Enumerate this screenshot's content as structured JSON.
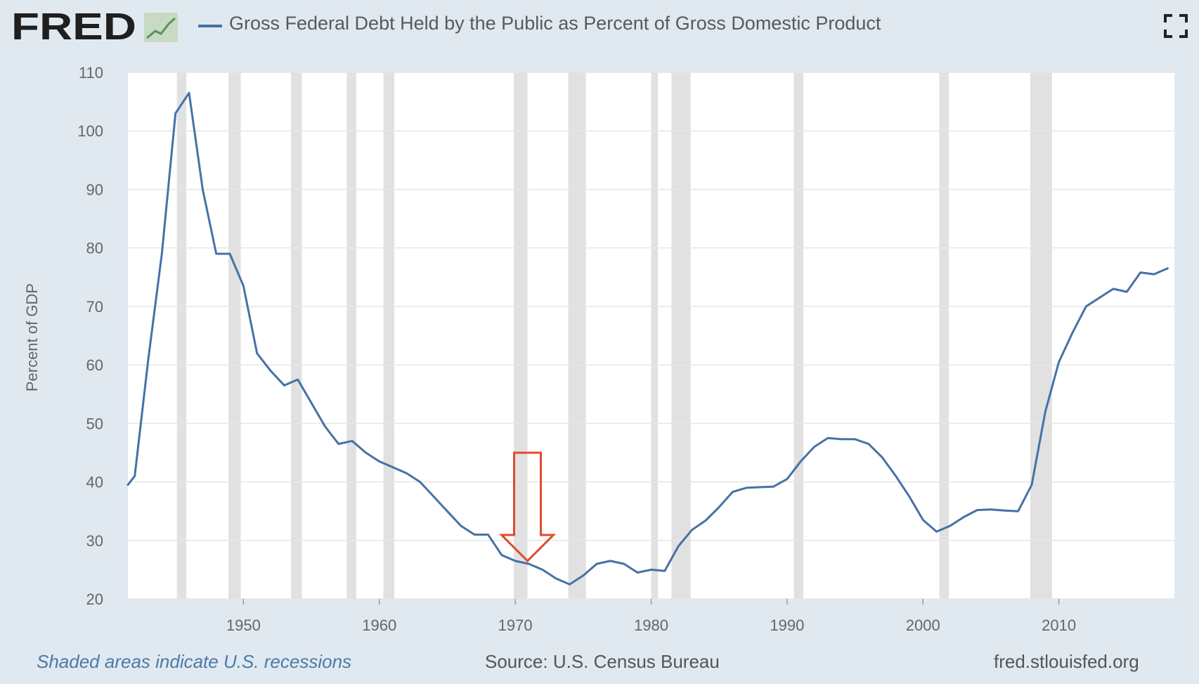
{
  "header": {
    "logo_text": "FRED",
    "title": "Gross Federal Debt Held by the Public as Percent of Gross Domestic Product",
    "fullscreen_icon": "fullscreen-expand-icon",
    "logo_icon": "line-chart-icon"
  },
  "footer": {
    "recession_note": "Shaded areas indicate U.S. recessions",
    "source": "Source: U.S. Census Bureau",
    "url": "fred.stlouisfed.org"
  },
  "colors": {
    "series": "#4572a7",
    "recession": "#e1e1e1",
    "background": "#e1e9f0",
    "plot": "#ffffff",
    "annotation_arrow": "#e04a2f",
    "note_text": "#4a7aa8"
  },
  "chart_data": {
    "type": "line",
    "title": "Gross Federal Debt Held by the Public as Percent of Gross Domestic Product",
    "xlabel": "",
    "ylabel": "Percent of GDP",
    "xlim": [
      1941.5,
      2018.5
    ],
    "ylim": [
      20,
      110
    ],
    "x_ticks": [
      1950,
      1960,
      1970,
      1980,
      1990,
      2000,
      2010
    ],
    "y_ticks": [
      20,
      30,
      40,
      50,
      60,
      70,
      80,
      90,
      100,
      110
    ],
    "grid": true,
    "legend_position": "top",
    "series": [
      {
        "name": "Gross Federal Debt Held by the Public as Percent of Gross Domestic Product",
        "x": [
          1941.5,
          1942,
          1943,
          1944,
          1945,
          1946,
          1947,
          1948,
          1949,
          1950,
          1951,
          1952,
          1953,
          1954,
          1955,
          1956,
          1957,
          1958,
          1959,
          1960,
          1961,
          1962,
          1963,
          1964,
          1965,
          1966,
          1967,
          1968,
          1969,
          1970,
          1971,
          1972,
          1973,
          1974,
          1975,
          1976,
          1977,
          1978,
          1979,
          1980,
          1981,
          1982,
          1983,
          1984,
          1985,
          1986,
          1987,
          1988,
          1989,
          1990,
          1991,
          1992,
          1993,
          1994,
          1995,
          1996,
          1997,
          1998,
          1999,
          2000,
          2001,
          2002,
          2003,
          2004,
          2005,
          2006,
          2007,
          2008,
          2009,
          2010,
          2011,
          2012,
          2013,
          2014,
          2015,
          2016,
          2017,
          2018
        ],
        "values": [
          39.5,
          41,
          61,
          79,
          103,
          106.5,
          90,
          79,
          79,
          73.5,
          62,
          59,
          56.5,
          57.5,
          53.5,
          49.5,
          46.5,
          47,
          45,
          43.5,
          42.5,
          41.5,
          40,
          37.5,
          35,
          32.5,
          31,
          31,
          27.5,
          26.5,
          26,
          25,
          23.5,
          22.5,
          24,
          26,
          26.5,
          26,
          24.5,
          25,
          24.8,
          29,
          31.8,
          33.4,
          35.7,
          38.3,
          39,
          39.1,
          39.2,
          40.5,
          43.5,
          46,
          47.5,
          47.3,
          47.3,
          46.5,
          44.2,
          41,
          37.5,
          33.5,
          31.5,
          32.5,
          34,
          35.2,
          35.3,
          35.1,
          35,
          39.5,
          52,
          60.5,
          65.5,
          70,
          71.5,
          73,
          72.5,
          75.8,
          75.5,
          76.5
        ]
      }
    ],
    "recessions": [
      [
        1945.1,
        1945.8
      ],
      [
        1948.9,
        1949.8
      ],
      [
        1953.5,
        1954.3
      ],
      [
        1957.6,
        1958.3
      ],
      [
        1960.3,
        1961.1
      ],
      [
        1969.9,
        1970.9
      ],
      [
        1973.9,
        1975.2
      ],
      [
        1980.0,
        1980.5
      ],
      [
        1981.5,
        1982.9
      ],
      [
        1990.5,
        1991.2
      ],
      [
        2001.2,
        2001.9
      ],
      [
        2007.9,
        2009.5
      ]
    ],
    "annotations": [
      {
        "type": "down-arrow",
        "x": 1970.9,
        "y_top": 45,
        "y_tip": 26.5
      }
    ]
  }
}
